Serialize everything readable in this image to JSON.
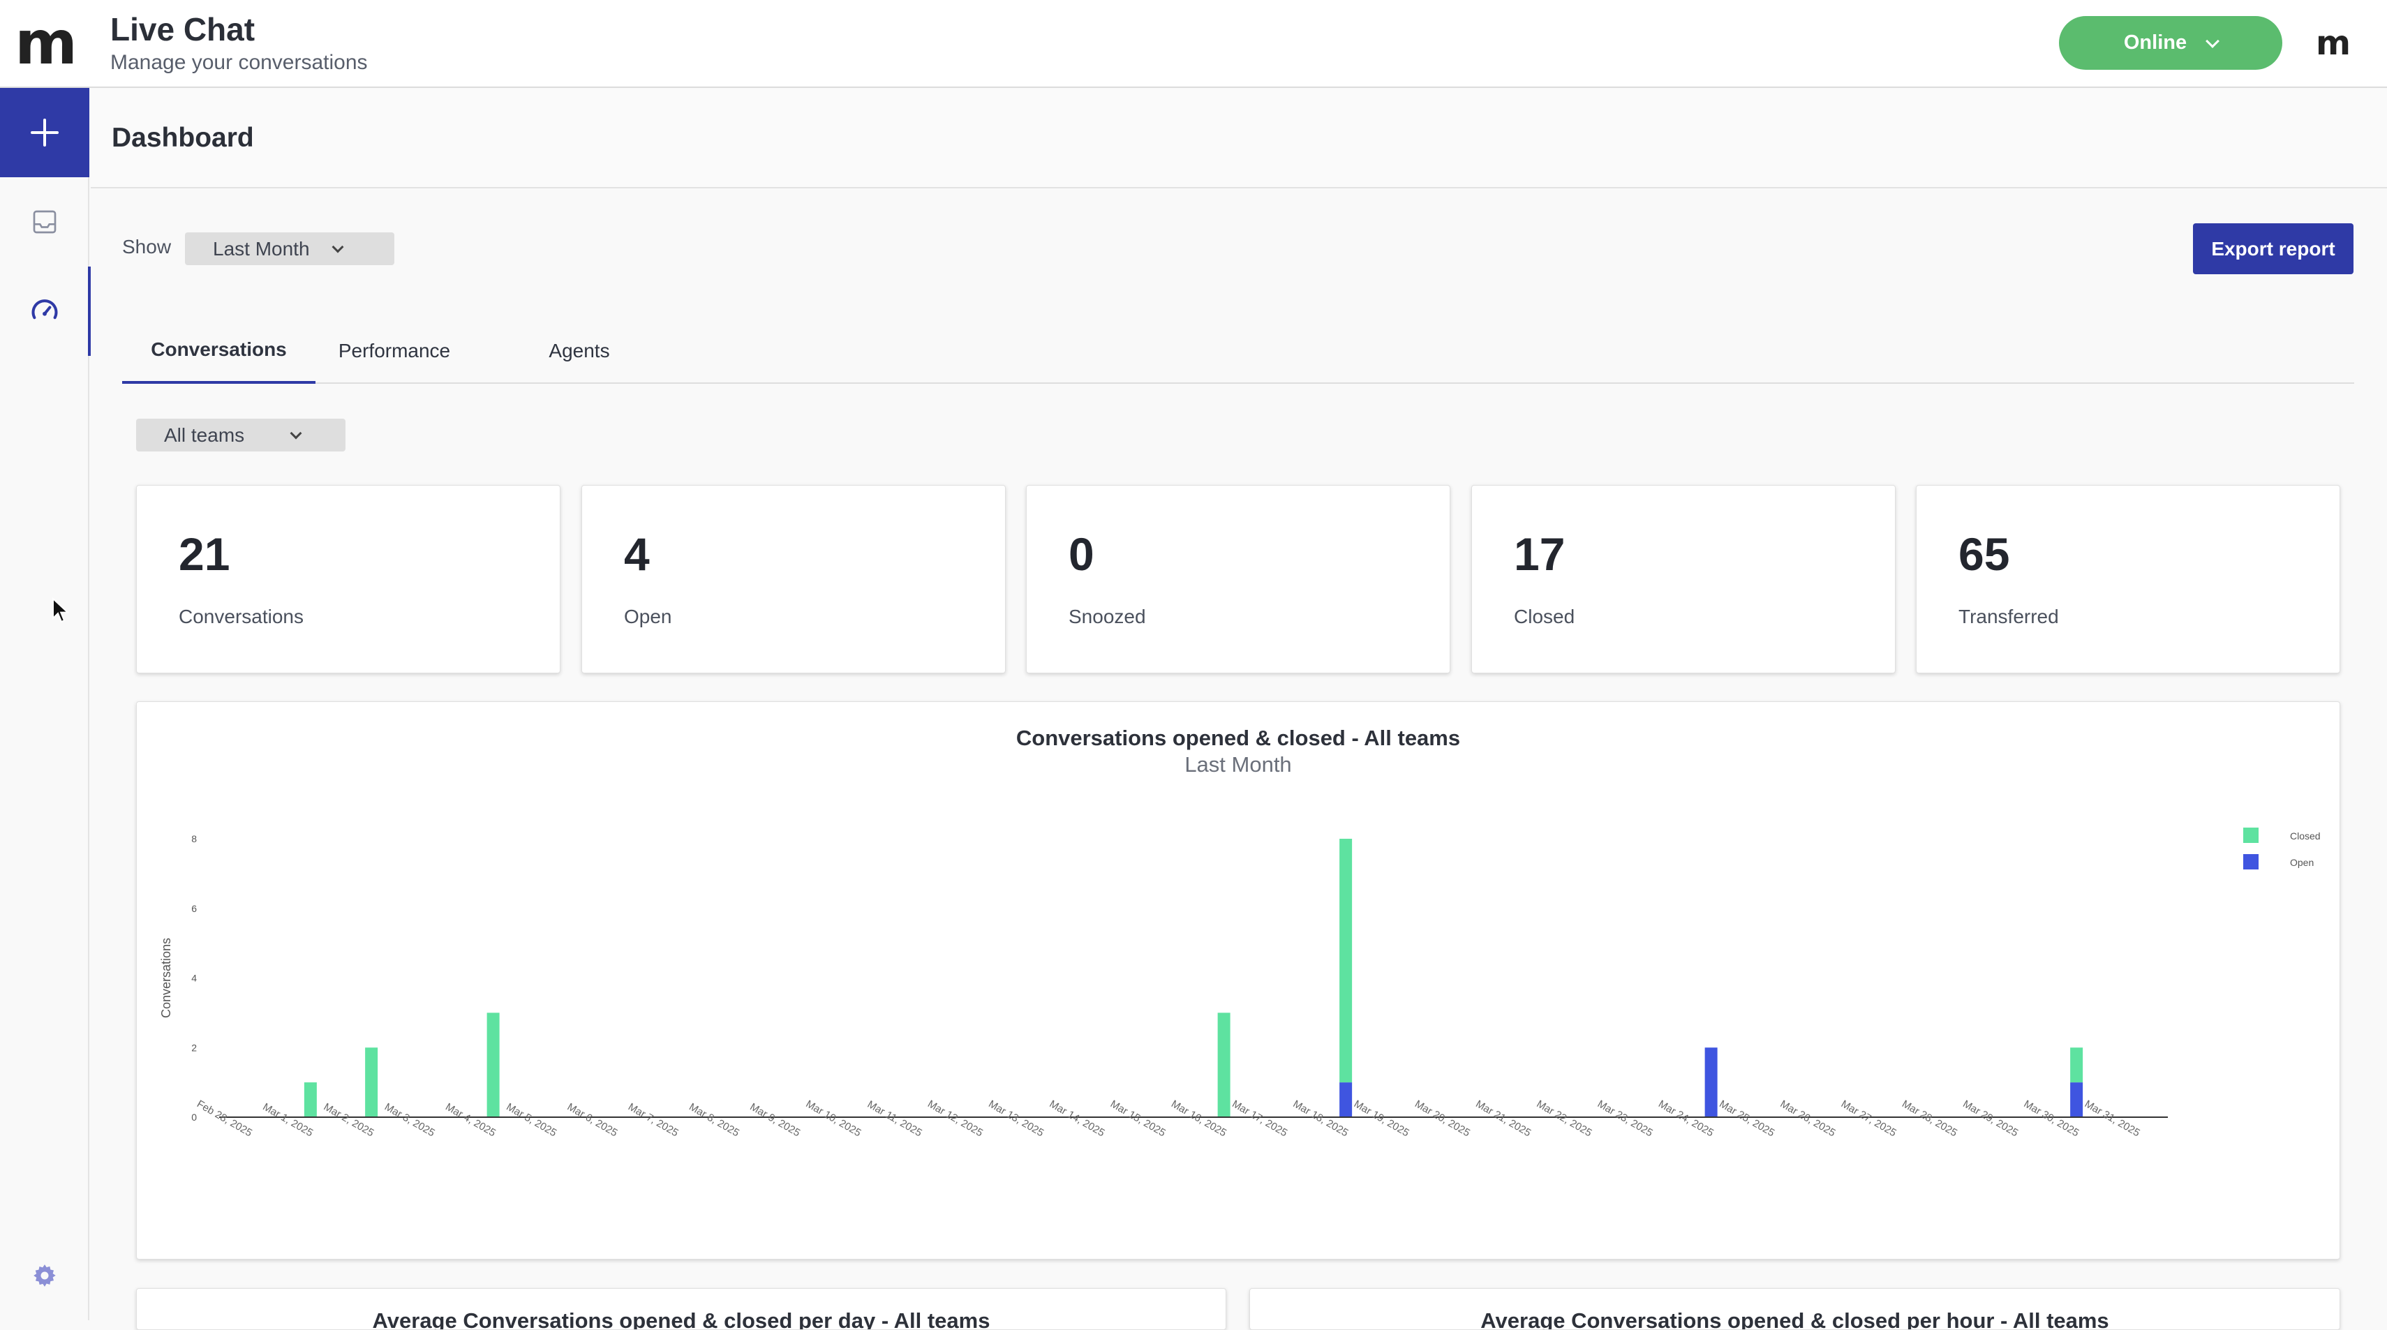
{
  "app": {
    "title": "Live Chat",
    "subtitle": "Manage your conversations",
    "status_label": "Online",
    "brand_colors": {
      "primary": "#2f3aa6",
      "online": "#5bbc6e",
      "closed": "#5ee2a0",
      "open": "#3f55e0"
    }
  },
  "page": {
    "title": "Dashboard",
    "show_label": "Show",
    "range_selected": "Last Month",
    "export_label": "Export report",
    "tabs": [
      {
        "label": "Conversations",
        "active": true
      },
      {
        "label": "Performance",
        "active": false
      },
      {
        "label": "Agents",
        "active": false
      }
    ],
    "team_selected": "All teams"
  },
  "stats": [
    {
      "value": "21",
      "label": "Conversations"
    },
    {
      "value": "4",
      "label": "Open"
    },
    {
      "value": "0",
      "label": "Snoozed"
    },
    {
      "value": "17",
      "label": "Closed"
    },
    {
      "value": "65",
      "label": "Transferred"
    }
  ],
  "chart_data": {
    "type": "bar",
    "stacked": true,
    "title": "Conversations opened & closed - All teams",
    "subtitle": "Last Month",
    "xlabel": "",
    "ylabel": "Conversations",
    "ylim": [
      0,
      8
    ],
    "yticks": [
      0,
      2,
      4,
      6,
      8
    ],
    "legend_position": "top-right",
    "categories": [
      "Feb 28, 2025",
      "Mar 1, 2025",
      "Mar 2, 2025",
      "Mar 3, 2025",
      "Mar 4, 2025",
      "Mar 5, 2025",
      "Mar 6, 2025",
      "Mar 7, 2025",
      "Mar 8, 2025",
      "Mar 9, 2025",
      "Mar 10, 2025",
      "Mar 11, 2025",
      "Mar 12, 2025",
      "Mar 13, 2025",
      "Mar 14, 2025",
      "Mar 15, 2025",
      "Mar 16, 2025",
      "Mar 17, 2025",
      "Mar 18, 2025",
      "Mar 19, 2025",
      "Mar 20, 2025",
      "Mar 21, 2025",
      "Mar 22, 2025",
      "Mar 23, 2025",
      "Mar 24, 2025",
      "Mar 25, 2025",
      "Mar 26, 2025",
      "Mar 27, 2025",
      "Mar 28, 2025",
      "Mar 29, 2025",
      "Mar 30, 2025",
      "Mar 31, 2025"
    ],
    "series": [
      {
        "name": "Open",
        "color": "#3f55e0",
        "values": [
          0,
          0,
          0,
          0,
          0,
          0,
          0,
          0,
          0,
          0,
          0,
          0,
          0,
          0,
          0,
          0,
          0,
          0,
          1,
          0,
          0,
          0,
          0,
          0,
          2,
          0,
          0,
          0,
          0,
          0,
          1,
          0
        ]
      },
      {
        "name": "Closed",
        "color": "#5ee2a0",
        "values": [
          0,
          1,
          2,
          0,
          3,
          0,
          0,
          0,
          0,
          0,
          0,
          0,
          0,
          0,
          0,
          0,
          3,
          0,
          7,
          0,
          0,
          0,
          0,
          0,
          0,
          0,
          0,
          0,
          0,
          0,
          1,
          0
        ]
      }
    ]
  },
  "bottom_cards": [
    {
      "title": "Average Conversations opened & closed per day - All teams"
    },
    {
      "title": "Average Conversations opened & closed per hour - All teams"
    }
  ]
}
